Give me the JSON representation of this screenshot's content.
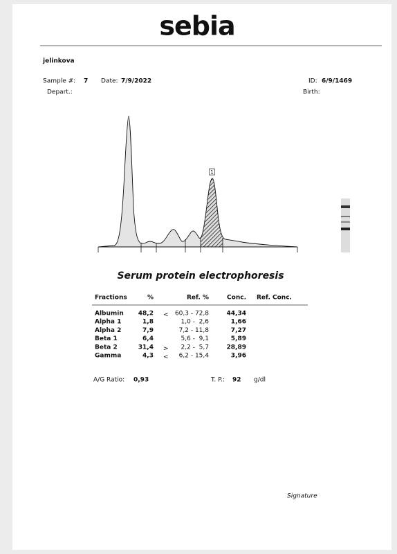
{
  "header": {
    "logo": "sebia",
    "patient": "jelinkova",
    "sample_label": "Sample #:",
    "sample": "7",
    "date_label": "Date:",
    "date": "7/9/2022",
    "id_label": "ID:",
    "id": "6/9/1469",
    "depart_label": "Depart.:",
    "birth_label": "Birth:"
  },
  "graph": {
    "marker": "1"
  },
  "report": {
    "title": "Serum protein electrophoresis",
    "columns": [
      "Fractions",
      "%",
      "Ref. %",
      "Conc.",
      "Ref. Conc."
    ],
    "rows": [
      {
        "fraction": "Albumin",
        "percent": "48,2",
        "flag": "<",
        "ref": "60,3 - 72,8",
        "conc": "44,34"
      },
      {
        "fraction": "Alpha 1",
        "percent": "1,8",
        "ref": "1,0 -  2,6",
        "conc": "1,66"
      },
      {
        "fraction": "Alpha 2",
        "percent": "7,9",
        "ref": "7,2 - 11,8",
        "conc": "7,27"
      },
      {
        "fraction": "Beta 1",
        "percent": "6,4",
        "ref": "5,6 -  9,1",
        "conc": "5,89"
      },
      {
        "fraction": "Beta 2",
        "percent": "31,4",
        "flag": ">",
        "ref": "2,2 -  5,7",
        "conc": "28,89"
      },
      {
        "fraction": "Gamma",
        "percent": "4,3",
        "flag": "<",
        "ref": "6,2 - 15,4",
        "conc": "3,96"
      }
    ],
    "ag_label": "A/G Ratio:",
    "ag": "0,93",
    "tp_label": "T. P.:",
    "tp": "92",
    "tp_unit": "g/dl"
  },
  "footer": {
    "signature": "Signature"
  }
}
